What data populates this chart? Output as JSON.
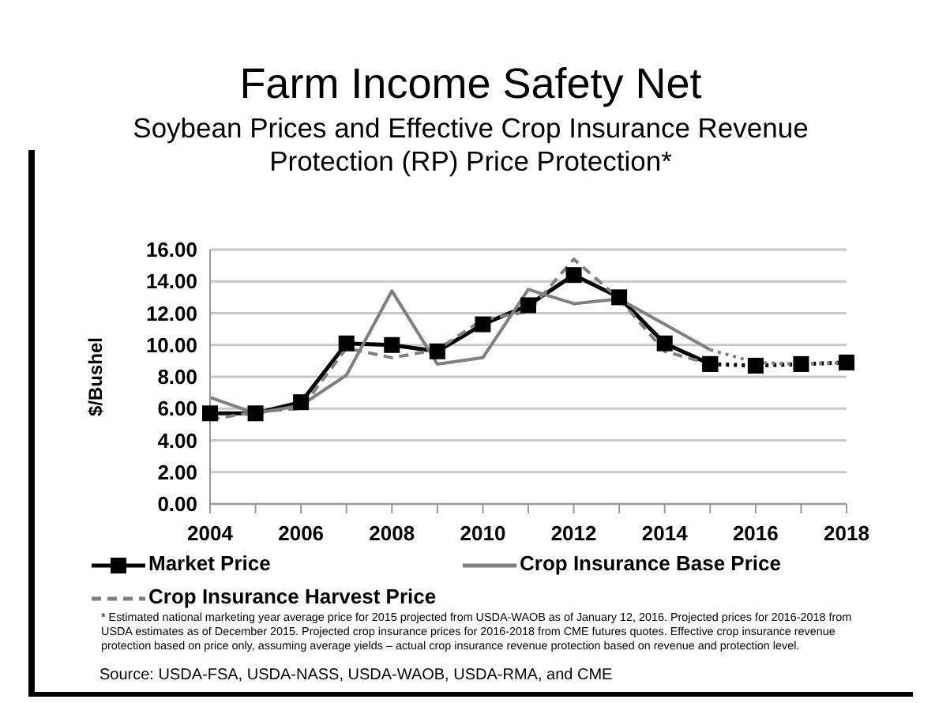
{
  "chart_data": {
    "type": "line",
    "title": "Farm Income Safety Net",
    "subtitle": "Soybean Prices and Effective Crop Insurance Revenue Protection (RP) Price Protection*",
    "ylabel": "$/Bushel",
    "categories": [
      "2004",
      null,
      "2006",
      null,
      "2008",
      null,
      "2010",
      null,
      "2012",
      null,
      "2014",
      null,
      "2016",
      null,
      "2018"
    ],
    "series": [
      {
        "name": "Market Price",
        "color": "#000000",
        "marker": "square",
        "line_style": "solid",
        "values": [
          5.7,
          5.7,
          6.4,
          10.1,
          10.0,
          9.6,
          11.3,
          12.5,
          14.4,
          13.0,
          10.1,
          8.8,
          null,
          null,
          null
        ]
      },
      {
        "name": "Crop Insurance Base Price",
        "color": "#808080",
        "marker": "none",
        "line_style": "solid",
        "values": [
          6.7,
          5.7,
          6.2,
          8.1,
          13.4,
          8.8,
          9.2,
          13.5,
          12.6,
          12.9,
          11.3,
          9.7,
          null,
          null,
          null
        ]
      },
      {
        "name": "Crop Insurance Harvest Price",
        "color": "#808080",
        "marker": "none",
        "line_style": "dashed",
        "values": [
          5.3,
          5.8,
          6.0,
          9.8,
          9.2,
          9.7,
          11.6,
          12.1,
          15.4,
          12.9,
          9.6,
          8.8,
          null,
          null,
          null
        ]
      },
      {
        "color": "#000000",
        "marker": "square",
        "line_style": "dotted",
        "values": [
          null,
          null,
          null,
          null,
          null,
          null,
          null,
          null,
          null,
          null,
          null,
          8.8,
          8.7,
          8.8,
          8.9
        ]
      },
      {
        "color": "#808080",
        "marker": "none",
        "line_style": "dotted",
        "values": [
          null,
          null,
          null,
          null,
          null,
          null,
          null,
          null,
          null,
          null,
          null,
          9.7,
          8.9,
          8.8,
          8.9
        ]
      }
    ],
    "ylim": [
      0,
      16
    ],
    "yticks": [
      {
        "value": 0,
        "label": "0.00"
      },
      {
        "value": 2,
        "label": "2.00"
      },
      {
        "value": 4,
        "label": "4.00"
      },
      {
        "value": 6,
        "label": "6.00"
      },
      {
        "value": 8,
        "label": "8.00"
      },
      {
        "value": 10,
        "label": "10.00"
      },
      {
        "value": 12,
        "label": "12.00"
      },
      {
        "value": 14,
        "label": "14.00"
      },
      {
        "value": 16,
        "label": "16.00"
      }
    ],
    "grid": "y",
    "legend": "bottom",
    "annotations": [
      "* Estimated national marketing year average price for 2015 projected from USDA-WAOB as of January 12, 2016. Projected prices for 2016-2018 from USDA estimates as of December 2015. Projected crop insurance prices for 2016-2018 from CME futures quotes. Effective crop insurance revenue protection based on price only, assuming average yields – actual crop insurance revenue protection based on revenue and protection level.",
      "Source: USDA-FSA, USDA-NASS, USDA-WAOB, USDA-RMA, and CME"
    ]
  }
}
